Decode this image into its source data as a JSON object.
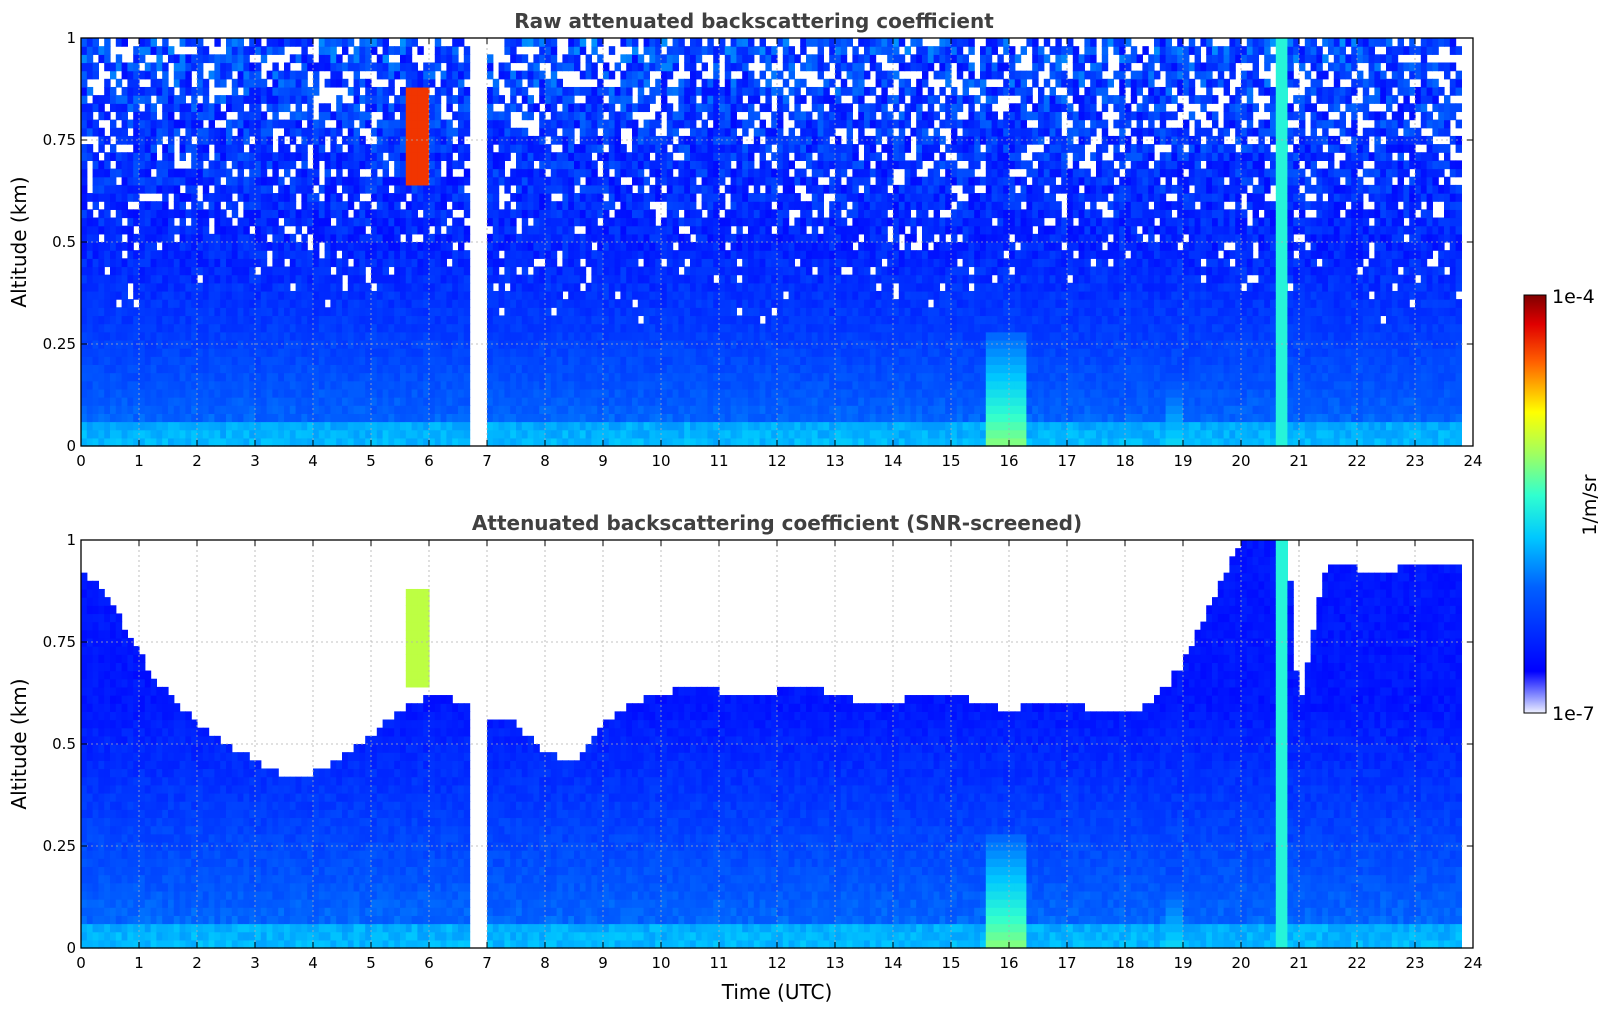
{
  "chart_data": [
    {
      "type": "heatmap",
      "title": "Raw attenuated backscattering coefficient",
      "xlabel": "",
      "ylabel": "Altitude (km)",
      "xlim": [
        0,
        24
      ],
      "ylim": [
        0,
        1
      ],
      "x_ticks": [
        0,
        1,
        2,
        3,
        4,
        5,
        6,
        7,
        8,
        9,
        10,
        11,
        12,
        13,
        14,
        15,
        16,
        17,
        18,
        19,
        20,
        21,
        22,
        23,
        24
      ],
      "y_ticks": [
        0,
        0.25,
        0.5,
        0.75,
        1
      ],
      "y_tick_labels": [
        "0",
        "0.25",
        "0.5",
        "0.75",
        "1"
      ],
      "grid": true,
      "data_gap": [
        6.75,
        7.0
      ],
      "data_end": 23.8,
      "features": [
        {
          "kind": "aerosol",
          "x": [
            5.6,
            6.0
          ],
          "y": [
            0.65,
            0.88
          ],
          "level": 0.88
        },
        {
          "kind": "bright column",
          "x": [
            20.6,
            20.75
          ],
          "y": [
            0,
            1
          ],
          "level": 0.5
        },
        {
          "kind": "near-surface plume",
          "x": [
            15.6,
            16.3
          ],
          "y": [
            0,
            0.28
          ],
          "level": 0.6
        },
        {
          "kind": "near-surface plume",
          "x": [
            18.7,
            19.0
          ],
          "y": [
            0,
            0.2
          ],
          "level": 0.45
        }
      ]
    },
    {
      "type": "heatmap",
      "title": "Attenuated backscattering coefficient (SNR-screened)",
      "xlabel": "Time (UTC)",
      "ylabel": "Altitude (km)",
      "xlim": [
        0,
        24
      ],
      "ylim": [
        0,
        1
      ],
      "x_ticks": [
        0,
        1,
        2,
        3,
        4,
        5,
        6,
        7,
        8,
        9,
        10,
        11,
        12,
        13,
        14,
        15,
        16,
        17,
        18,
        19,
        20,
        21,
        22,
        23,
        24
      ],
      "y_ticks": [
        0,
        0.25,
        0.5,
        0.75,
        1
      ],
      "y_tick_labels": [
        "0",
        "0.25",
        "0.5",
        "0.75",
        "1"
      ],
      "grid": true,
      "data_gap": [
        6.75,
        7.0
      ],
      "data_end": 23.8,
      "screened_top_km": [
        [
          0,
          0.93
        ],
        [
          0.5,
          0.85
        ],
        [
          1,
          0.72
        ],
        [
          1.5,
          0.62
        ],
        [
          2,
          0.55
        ],
        [
          2.5,
          0.5
        ],
        [
          3,
          0.46
        ],
        [
          3.5,
          0.42
        ],
        [
          4,
          0.43
        ],
        [
          4.5,
          0.47
        ],
        [
          5,
          0.52
        ],
        [
          5.5,
          0.58
        ],
        [
          6,
          0.62
        ],
        [
          6.75,
          0.6
        ],
        [
          7,
          0.56
        ],
        [
          7.5,
          0.55
        ],
        [
          8,
          0.48
        ],
        [
          8.5,
          0.46
        ],
        [
          9,
          0.55
        ],
        [
          9.5,
          0.6
        ],
        [
          10,
          0.62
        ],
        [
          10.5,
          0.64
        ],
        [
          11,
          0.63
        ],
        [
          11.5,
          0.62
        ],
        [
          12,
          0.63
        ],
        [
          12.5,
          0.64
        ],
        [
          13,
          0.62
        ],
        [
          13.5,
          0.6
        ],
        [
          14,
          0.6
        ],
        [
          14.5,
          0.62
        ],
        [
          15,
          0.63
        ],
        [
          15.5,
          0.6
        ],
        [
          16,
          0.58
        ],
        [
          16.5,
          0.6
        ],
        [
          17,
          0.6
        ],
        [
          17.5,
          0.58
        ],
        [
          18,
          0.57
        ],
        [
          18.5,
          0.6
        ],
        [
          19,
          0.7
        ],
        [
          19.5,
          0.85
        ],
        [
          20,
          1
        ],
        [
          20.8,
          1
        ],
        [
          21,
          0.58
        ],
        [
          21.2,
          0.75
        ],
        [
          21.5,
          0.95
        ],
        [
          22,
          0.93
        ],
        [
          22.5,
          0.92
        ],
        [
          23,
          0.95
        ],
        [
          23.8,
          0.94
        ]
      ],
      "features": [
        {
          "kind": "aerosol",
          "x": [
            5.6,
            6.0
          ],
          "y": [
            0.65,
            0.88
          ],
          "level": 0.65
        },
        {
          "kind": "bright column",
          "x": [
            20.6,
            20.75
          ],
          "y": [
            0,
            1
          ],
          "level": 0.5
        },
        {
          "kind": "near-surface plume",
          "x": [
            15.6,
            16.3
          ],
          "y": [
            0,
            0.28
          ],
          "level": 0.6
        },
        {
          "kind": "near-surface plume",
          "x": [
            18.7,
            19.0
          ],
          "y": [
            0,
            0.2
          ],
          "level": 0.45
        }
      ]
    }
  ],
  "colorbar": {
    "label": "1/m/sr",
    "max_label": "1e-4",
    "min_label": "1e-7",
    "colormap": "jet"
  }
}
